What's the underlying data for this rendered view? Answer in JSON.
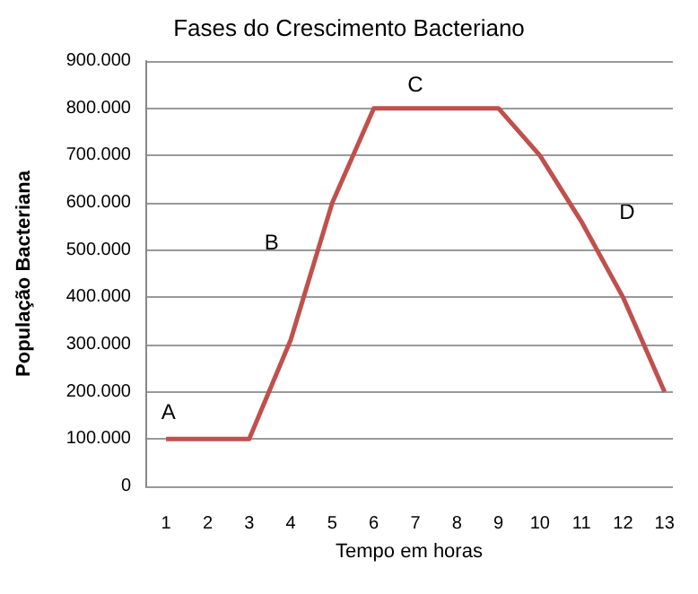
{
  "chart_data": {
    "type": "line",
    "title": "Fases do Crescimento Bacteriano",
    "xlabel": "Tempo em horas",
    "ylabel": "População Bacteriana",
    "x": [
      1,
      2,
      3,
      4,
      5,
      6,
      7,
      8,
      9,
      10,
      11,
      12,
      13
    ],
    "series": [
      {
        "color": "#c0504d",
        "values": [
          100000,
          100000,
          100000,
          310000,
          600000,
          800000,
          800000,
          800000,
          800000,
          700000,
          560000,
          400000,
          200000
        ]
      }
    ],
    "xlim": [
      0.5,
      13.2
    ],
    "xticks": [
      1,
      2,
      3,
      4,
      5,
      6,
      7,
      8,
      9,
      10,
      11,
      12,
      13
    ],
    "ylim": [
      0,
      900000
    ],
    "yticks": [
      {
        "value": 0,
        "label": "0"
      },
      {
        "value": 100000,
        "label": "100.000"
      },
      {
        "value": 200000,
        "label": "200.000"
      },
      {
        "value": 300000,
        "label": "300.000"
      },
      {
        "value": 400000,
        "label": "400.000"
      },
      {
        "value": 500000,
        "label": "500.000"
      },
      {
        "value": 600000,
        "label": "600.000"
      },
      {
        "value": 700000,
        "label": "700.000"
      },
      {
        "value": 800000,
        "label": "800.000"
      },
      {
        "value": 900000,
        "label": "900.000"
      }
    ],
    "grid": "y",
    "marker": "none",
    "line_style": "solid",
    "annotations": [
      "A",
      "B",
      "C",
      "D"
    ]
  }
}
